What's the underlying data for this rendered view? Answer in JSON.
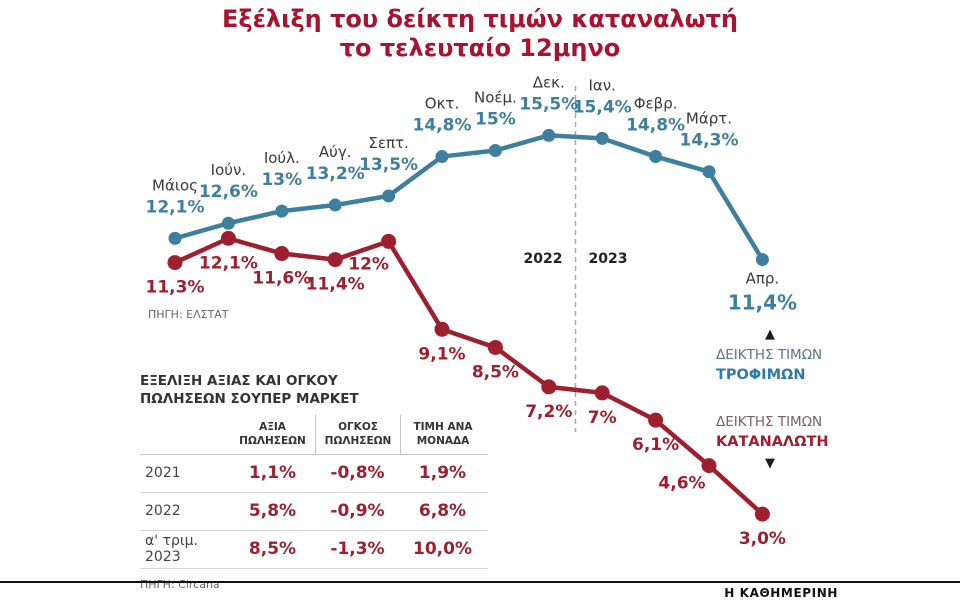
{
  "title": {
    "line1": "Εξέλιξη του δείκτη τιμών καταναλωτή",
    "line2": "το τελευταίο 12μηνο"
  },
  "chart_data": {
    "type": "line",
    "title": "Εξέλιξη του δείκτη τιμών καταναλωτή το τελευταίο 12μηνο",
    "unit": "%",
    "categories": [
      "Μάιος",
      "Ιούν.",
      "Ιούλ.",
      "Αύγ.",
      "Σεπτ.",
      "Οκτ.",
      "Νοέμ.",
      "Δεκ.",
      "Ιαν.",
      "Φεβρ.",
      "Μάρτ.",
      "Απρ."
    ],
    "series": [
      {
        "name": "ΔΕΙΚΤΗΣ ΤΙΜΩΝ ΤΡΟΦΙΜΩΝ",
        "color": "#3e7f9e",
        "values": [
          12.1,
          12.6,
          13,
          13.2,
          13.5,
          14.8,
          15,
          15.5,
          15.4,
          14.8,
          14.3,
          11.4
        ],
        "labels": [
          "12,1%",
          "12,6%",
          "13%",
          "13,2%",
          "13,5%",
          "14,8%",
          "15%",
          "15,5%",
          "15,4%",
          "14,8%",
          "14,3%",
          "11,4%"
        ]
      },
      {
        "name": "ΔΕΙΚΤΗΣ ΤΙΜΩΝ ΚΑΤΑΝΑΛΩΤΗ",
        "color": "#9e1f2e",
        "values": [
          11.3,
          12.1,
          11.6,
          11.4,
          12,
          9.1,
          8.5,
          7.2,
          7,
          6.1,
          4.6,
          3.0
        ],
        "labels": [
          "11,3%",
          "12,1%",
          "11,6%",
          "11,4%",
          "12%",
          "9,1%",
          "8,5%",
          "7,2%",
          "7%",
          "6,1%",
          "4,6%",
          "3,0%"
        ]
      }
    ],
    "year_divider": {
      "left": "2022",
      "right": "2023",
      "after_index": 7
    },
    "source": "ΠΗΓΗ: ΕΛΣΤΑΤ",
    "grid": false,
    "legend_position": "right"
  },
  "table": {
    "title_line1": "ΕΞΕΛΙΞΗ ΑΞΙΑΣ ΚΑΙ ΟΓΚΟΥ",
    "title_line2": "ΠΩΛΗΣΕΩΝ ΣΟΥΠΕΡ ΜΑΡΚΕΤ",
    "columns": [
      "ΑΞΙΑ\nΠΩΛΗΣΕΩΝ",
      "ΟΓΚΟΣ\nΠΩΛΗΣΕΩΝ",
      "ΤΙΜΗ ΑΝΑ\nΜΟΝΑΔΑ"
    ],
    "rows": [
      {
        "label": "2021",
        "values": [
          "1,1%",
          "-0,8%",
          "1,9%"
        ]
      },
      {
        "label": "2022",
        "values": [
          "5,8%",
          "-0,9%",
          "6,8%"
        ]
      },
      {
        "label": "α' τριμ. 2023",
        "values": [
          "8,5%",
          "-1,3%",
          "10,0%"
        ]
      }
    ],
    "source": "ΠΗΓΗ: Circana"
  },
  "legend": {
    "food": {
      "arrow": "▲",
      "line1": "ΔΕΙΚΤΗΣ ΤΙΜΩΝ",
      "line2": "ΤΡΟΦΙΜΩΝ"
    },
    "cpi": {
      "line1": "ΔΕΙΚΤΗΣ ΤΙΜΩΝ",
      "line2": "ΚΑΤΑΝΑΛΩΤΗ",
      "arrow": "▼"
    }
  },
  "footer": {
    "brand": "Η ΚΑΘΗΜΕΡΙΝΗ"
  },
  "colors": {
    "title": "#a8142f",
    "food_line": "#3e7f9e",
    "cpi_line": "#9e1f2e",
    "divider": "#a9a9a9"
  }
}
